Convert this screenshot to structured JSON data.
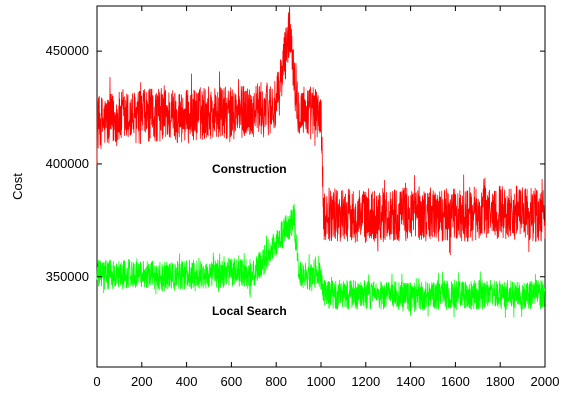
{
  "chart_data": {
    "type": "line",
    "title": "",
    "xlabel": "",
    "ylabel": "Cost",
    "xlim": [
      0,
      2000
    ],
    "ylim": [
      310000,
      470000
    ],
    "xticks": [
      0,
      200,
      400,
      600,
      800,
      1000,
      1200,
      1400,
      1600,
      1800,
      2000
    ],
    "yticks": [
      350000,
      400000,
      450000
    ],
    "grid": false,
    "legend": "none",
    "series": [
      {
        "color": "#ff0000",
        "noise_amplitude": 12000,
        "segments": [
          {
            "x_start": 0,
            "x_end": 1000,
            "mean": 422000
          },
          {
            "x_start": 1000,
            "x_end": 2000,
            "mean": 378000
          }
        ],
        "values": [
          [
            0,
            418000
          ],
          [
            100,
            420000
          ],
          [
            200,
            421000
          ],
          [
            300,
            422000
          ],
          [
            400,
            421000
          ],
          [
            500,
            423000
          ],
          [
            600,
            422000
          ],
          [
            700,
            424000
          ],
          [
            800,
            425000
          ],
          [
            860,
            460000
          ],
          [
            900,
            424000
          ],
          [
            1000,
            422000
          ],
          [
            1010,
            378000
          ],
          [
            1200,
            377000
          ],
          [
            1400,
            378000
          ],
          [
            1600,
            377000
          ],
          [
            1800,
            379000
          ],
          [
            2000,
            377000
          ]
        ]
      },
      {
        "color": "#00ff00",
        "noise_amplitude": 6500,
        "segments": [
          {
            "x_start": 0,
            "x_end": 1000,
            "mean": 351000
          },
          {
            "x_start": 1000,
            "x_end": 2000,
            "mean": 342000
          }
        ],
        "values": [
          [
            0,
            351000
          ],
          [
            100,
            351000
          ],
          [
            200,
            352000
          ],
          [
            300,
            350000
          ],
          [
            400,
            351000
          ],
          [
            500,
            351000
          ],
          [
            600,
            352000
          ],
          [
            700,
            351000
          ],
          [
            880,
            376000
          ],
          [
            900,
            350000
          ],
          [
            1000,
            350000
          ],
          [
            1010,
            342000
          ],
          [
            1200,
            342000
          ],
          [
            1400,
            341000
          ],
          [
            1600,
            342000
          ],
          [
            1800,
            342000
          ],
          [
            2000,
            342000
          ]
        ]
      }
    ],
    "annotations": [
      {
        "text": "Construction",
        "x": 680,
        "y": 396000
      },
      {
        "text": "Local Search",
        "x": 680,
        "y": 333000
      }
    ]
  }
}
